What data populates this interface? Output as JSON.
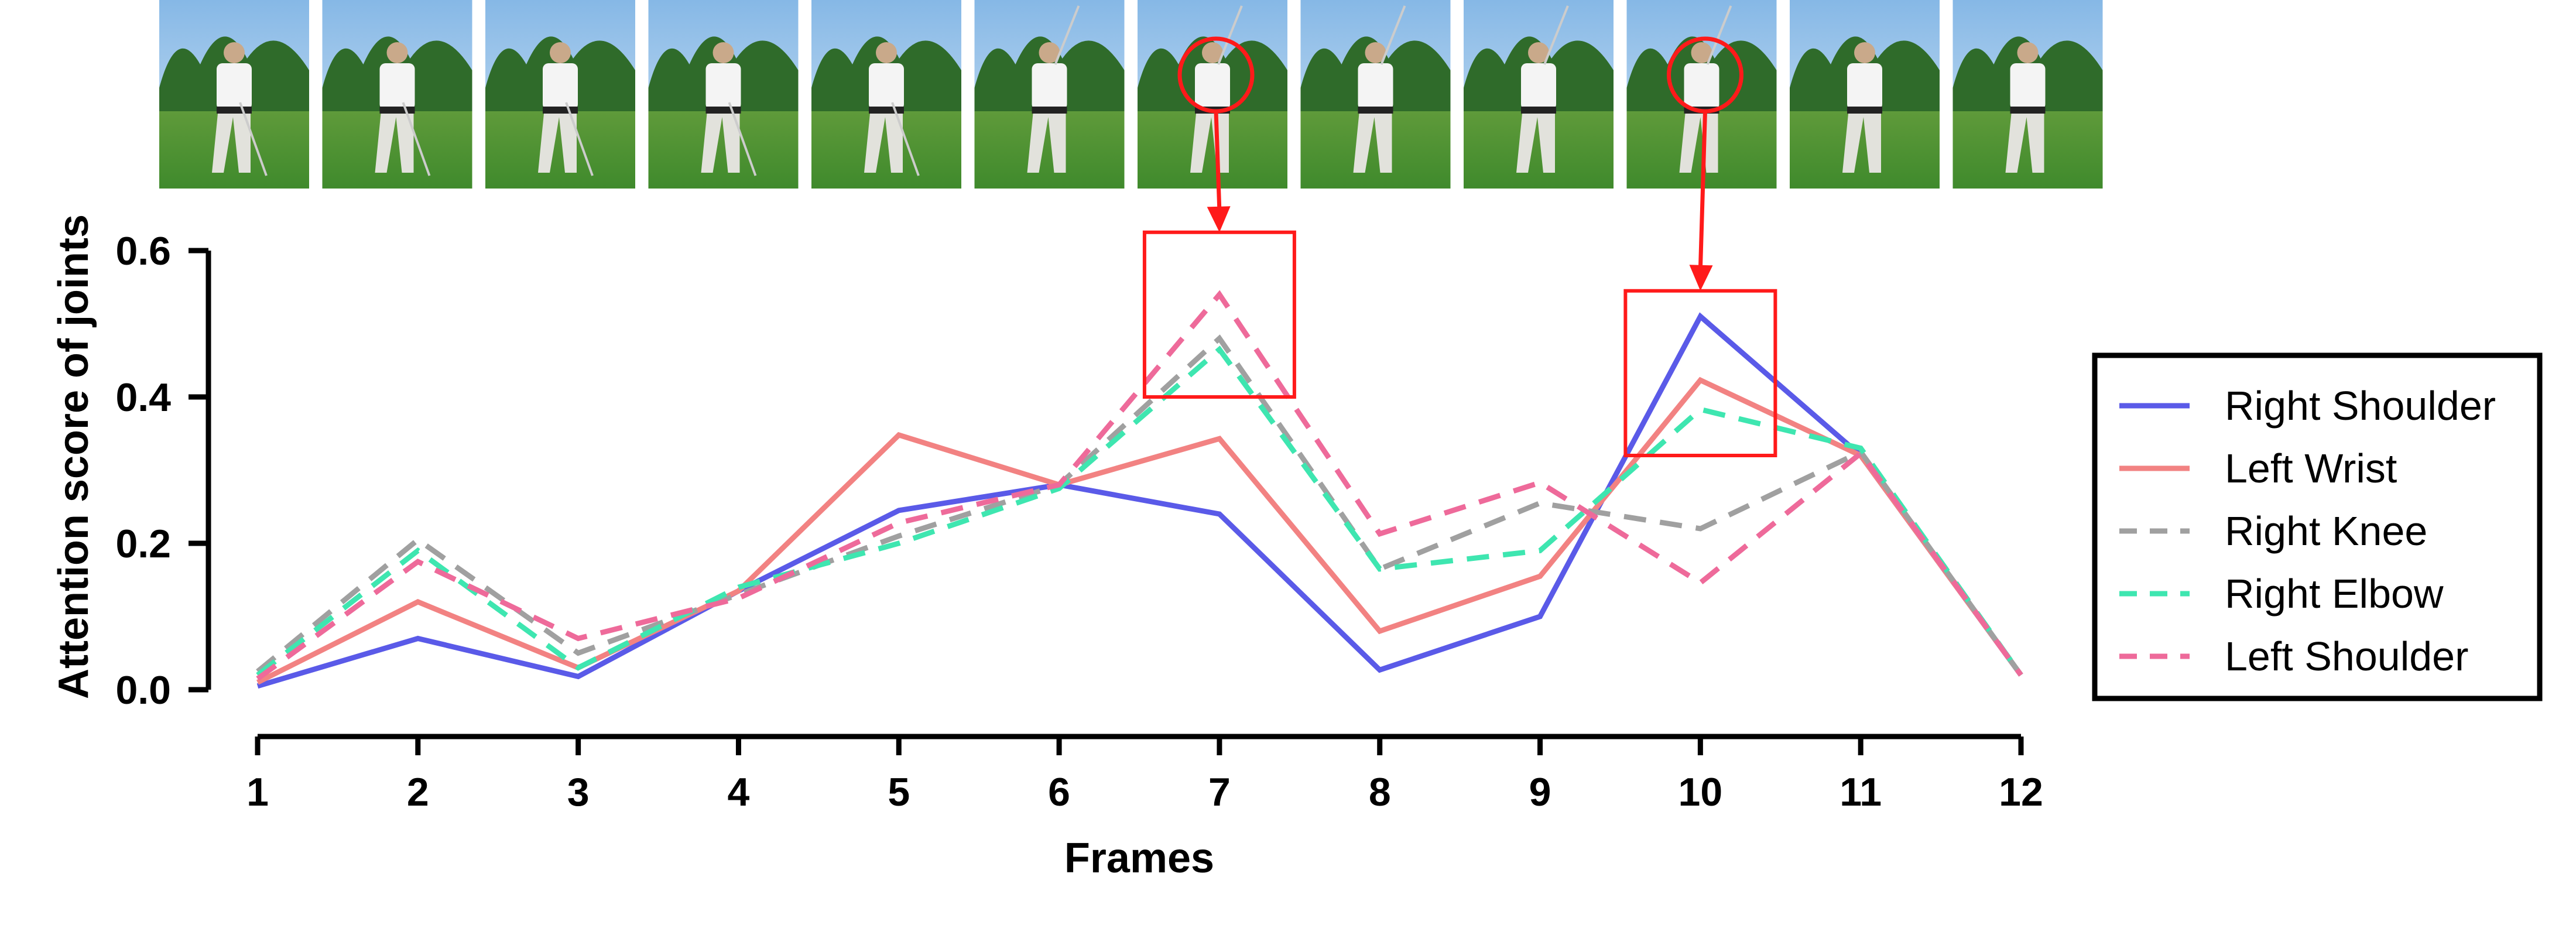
{
  "chart_data": {
    "type": "line",
    "title": "",
    "xlabel": "Frames",
    "ylabel": "Attention score of joints",
    "x": [
      1,
      2,
      3,
      4,
      5,
      6,
      7,
      8,
      9,
      10,
      11,
      12
    ],
    "x_tick_labels": [
      "1",
      "2",
      "3",
      "4",
      "5",
      "6",
      "7",
      "8",
      "9",
      "10",
      "11",
      "12"
    ],
    "xlim": [
      1,
      12
    ],
    "ylim": [
      0,
      0.6
    ],
    "y_ticks": [
      0.0,
      0.2,
      0.4,
      0.6
    ],
    "y_tick_labels": [
      "0.0",
      "0.2",
      "0.4",
      "0.6"
    ],
    "grid": false,
    "legend_position": "right",
    "series": [
      {
        "name": "Right Shoulder",
        "color": "#5a5ae8",
        "dash": "solid",
        "values": [
          0.005,
          0.07,
          0.018,
          0.135,
          0.245,
          0.28,
          0.24,
          0.027,
          0.1,
          0.51,
          0.32,
          0.02
        ]
      },
      {
        "name": "Left Wrist",
        "color": "#f28282",
        "dash": "solid",
        "values": [
          0.01,
          0.12,
          0.03,
          0.135,
          0.348,
          0.28,
          0.343,
          0.08,
          0.155,
          0.423,
          0.32,
          0.02
        ]
      },
      {
        "name": "Right Knee",
        "color": "#a0a0a0",
        "dash": "dashed",
        "values": [
          0.025,
          0.205,
          0.05,
          0.13,
          0.21,
          0.28,
          0.48,
          0.165,
          0.255,
          0.22,
          0.325,
          0.02
        ]
      },
      {
        "name": "Right Elbow",
        "color": "#3ee6b0",
        "dash": "dashed",
        "values": [
          0.02,
          0.19,
          0.03,
          0.14,
          0.2,
          0.275,
          0.465,
          0.165,
          0.19,
          0.383,
          0.33,
          0.02
        ]
      },
      {
        "name": "Left Shoulder",
        "color": "#ee6a9a",
        "dash": "dashed",
        "values": [
          0.015,
          0.175,
          0.07,
          0.125,
          0.228,
          0.28,
          0.54,
          0.213,
          0.283,
          0.146,
          0.323,
          0.02
        ]
      }
    ],
    "annotations": [
      {
        "type": "box",
        "x": 7,
        "y_range": [
          0.4,
          0.625
        ],
        "color": "#ff1a1a"
      },
      {
        "type": "box",
        "x": 10,
        "y_range": [
          0.32,
          0.545
        ],
        "color": "#ff1a1a"
      }
    ]
  },
  "frames_strip": {
    "count": 12,
    "highlighted_frames": [
      7,
      10
    ],
    "highlight_color": "#ff1a1a"
  }
}
